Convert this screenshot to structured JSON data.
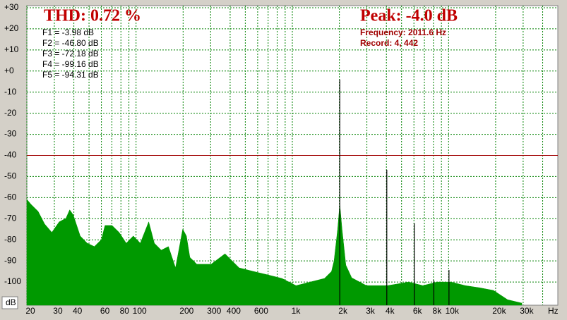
{
  "chart_data": {
    "type": "area",
    "title": "THD: 0.72 %",
    "peak_label": "Peak: -4.0 dB",
    "frequency_label": "Frequency: 2011.6 Hz",
    "record_label": "Record: 4,  442",
    "harmonic_labels": [
      "F1 = -3.98 dB",
      "F2 = -46.80 dB",
      "F3 = -72.18 dB",
      "F4 = -99.16 dB",
      "F5 = -94.31 dB"
    ],
    "x_unit": "Hz",
    "y_unit": "dB",
    "log_x": true,
    "grid": true,
    "grid_color": "#008000",
    "reference_line": -40,
    "reference_color": "#a00000",
    "xlim": [
      20,
      50000
    ],
    "ylim": [
      -111,
      31
    ],
    "xticks": [
      20,
      30,
      40,
      60,
      80,
      100,
      200,
      300,
      400,
      600,
      {
        "value": 1000,
        "label": "1k"
      },
      {
        "value": 2000,
        "label": "2k"
      },
      {
        "value": 3000,
        "label": "3k"
      },
      {
        "value": 4000,
        "label": "4k"
      },
      {
        "value": 6000,
        "label": "6k"
      },
      {
        "value": 8000,
        "label": "8k"
      },
      {
        "value": 10000,
        "label": "10k"
      },
      {
        "value": 20000,
        "label": "20k"
      },
      {
        "value": 30000,
        "label": "30k"
      }
    ],
    "minor_xticks": [
      50,
      70,
      90,
      500,
      700,
      800,
      900,
      5000,
      7000,
      9000,
      40000
    ],
    "yticks": [
      {
        "value": 30,
        "label": "+30"
      },
      {
        "value": 20,
        "label": "+20"
      },
      {
        "value": 10,
        "label": "+10"
      },
      {
        "value": 0,
        "label": "+0"
      },
      -10,
      -20,
      -30,
      -40,
      -50,
      -60,
      -70,
      -80,
      -90,
      -100
    ],
    "series": [
      {
        "color": "#009900",
        "x": [
          20,
          21.2,
          23.6,
          26,
          28.9,
          32.2,
          35.6,
          37.6,
          39.6,
          43.9,
          48.7,
          54.1,
          60,
          63.3,
          70.2,
          77.9,
          86.5,
          96,
          106.5,
          120.5,
          131,
          145,
          161,
          179,
          199,
          210,
          221,
          245,
          302,
          371,
          457,
          564,
          695,
          858,
          1057,
          1302,
          1606,
          1781,
          1850,
          1950,
          2011.6,
          2080,
          2200,
          2400,
          2981,
          4066,
          5560,
          6848,
          8430,
          10380,
          12780,
          15740,
          19380,
          23870,
          29400
        ],
        "values": [
          -60.8,
          -63.1,
          -66.5,
          -72.5,
          -76.5,
          -71.5,
          -69.8,
          -65.8,
          -68.2,
          -78.2,
          -81.6,
          -83.2,
          -79.9,
          -73.2,
          -73.2,
          -76.5,
          -81.6,
          -78.2,
          -81.6,
          -71.5,
          -81.6,
          -84.9,
          -83.2,
          -93.3,
          -74.9,
          -78.2,
          -88.3,
          -91.6,
          -91.6,
          -86.6,
          -93.3,
          -95,
          -96.6,
          -98.3,
          -101.7,
          -100,
          -98.3,
          -95,
          -90,
          -75,
          -63,
          -75,
          -92,
          -98,
          -101.7,
          -101.7,
          -100,
          -101.7,
          -100,
          -100,
          -101.7,
          -102.7,
          -104,
          -108.4,
          -110
        ]
      },
      {
        "color": "#000000",
        "x": [
          2011.6,
          4023.2,
          6034.8,
          8046.4,
          10058
        ],
        "values": [
          -3.98,
          -46.8,
          -72.18,
          -99.16,
          -94.31
        ]
      }
    ]
  }
}
